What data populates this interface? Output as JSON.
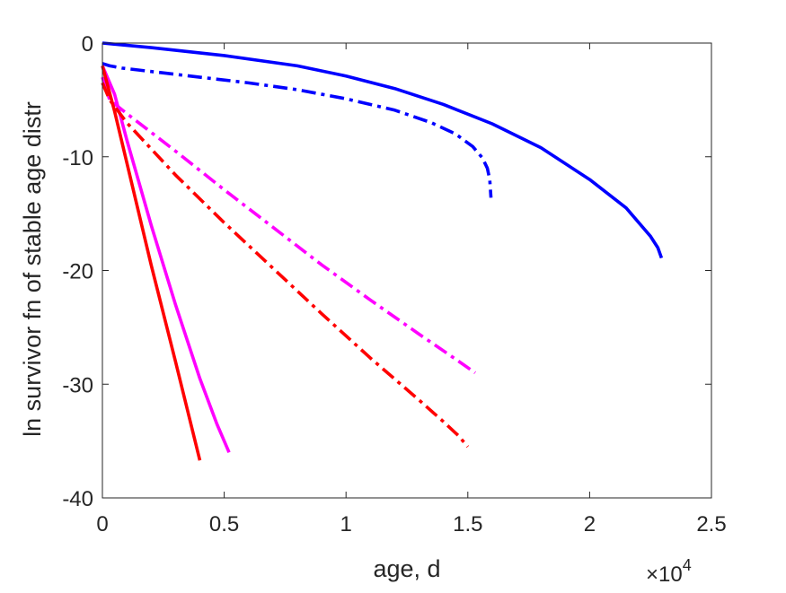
{
  "chart_data": {
    "type": "line",
    "title": "",
    "xlabel": "age, d",
    "ylabel": "ln survivor fn of stable age distr",
    "x_multiplier_label": {
      "base": "×10",
      "exponent": "4"
    },
    "xlim": [
      0,
      25000
    ],
    "ylim": [
      -40,
      0
    ],
    "xticks": [
      0,
      5000,
      10000,
      15000,
      20000,
      25000
    ],
    "xtick_labels": [
      "0",
      "0.5",
      "1",
      "1.5",
      "2",
      "2.5"
    ],
    "yticks": [
      0,
      -10,
      -20,
      -30,
      -40
    ],
    "ytick_labels": [
      "0",
      "-10",
      "-20",
      "-30",
      "-40"
    ],
    "grid": false,
    "legend": "none",
    "series": [
      {
        "color": "#0000ff",
        "dash": "solid",
        "x": [
          0,
          2000,
          5000,
          8000,
          10000,
          12000,
          14000,
          16000,
          18000,
          20000,
          21500,
          22500,
          22800,
          22950
        ],
        "y": [
          0,
          -0.4,
          -1.1,
          -2.0,
          -2.9,
          -4.0,
          -5.4,
          -7.1,
          -9.2,
          -12.0,
          -14.5,
          -17.0,
          -18.0,
          -18.9
        ]
      },
      {
        "color": "#0000ff",
        "dash": "dashdot",
        "x": [
          0,
          300,
          800,
          2000,
          4000,
          6000,
          8000,
          10000,
          12000,
          13500,
          14500,
          15200,
          15600,
          15800,
          15900,
          15950
        ],
        "y": [
          -1.8,
          -2.0,
          -2.2,
          -2.5,
          -3.0,
          -3.5,
          -4.1,
          -4.9,
          -5.9,
          -7.0,
          -8.0,
          -9.1,
          -10.1,
          -11.0,
          -12.0,
          -13.6
        ]
      },
      {
        "color": "#ff00ff",
        "dash": "solid",
        "x": [
          0,
          500,
          1000,
          2000,
          3000,
          4000,
          4700,
          5100,
          5200
        ],
        "y": [
          -2.0,
          -4.5,
          -8.5,
          -16.0,
          -23.0,
          -29.5,
          -33.5,
          -35.5,
          -36.0
        ]
      },
      {
        "color": "#ff00ff",
        "dash": "dashdot",
        "x": [
          0,
          300,
          1000,
          3000,
          5000,
          7000,
          9000,
          11000,
          13000,
          14500,
          15300
        ],
        "y": [
          -3.0,
          -5.0,
          -6.2,
          -9.5,
          -12.9,
          -16.2,
          -19.5,
          -22.6,
          -25.6,
          -27.8,
          -29.0
        ]
      },
      {
        "color": "#ff0000",
        "dash": "solid",
        "x": [
          0,
          500,
          1000,
          2000,
          3000,
          4000
        ],
        "y": [
          -2.0,
          -6.0,
          -10.5,
          -19.5,
          -28.0,
          -36.7
        ]
      },
      {
        "color": "#ff0000",
        "dash": "dashdot",
        "x": [
          0,
          300,
          1000,
          3000,
          5000,
          7000,
          9000,
          11000,
          13000,
          14000,
          14600,
          15000
        ],
        "y": [
          -3.5,
          -5.0,
          -7.0,
          -11.6,
          -15.8,
          -19.8,
          -23.8,
          -27.7,
          -31.4,
          -33.3,
          -34.5,
          -35.5
        ]
      }
    ]
  }
}
